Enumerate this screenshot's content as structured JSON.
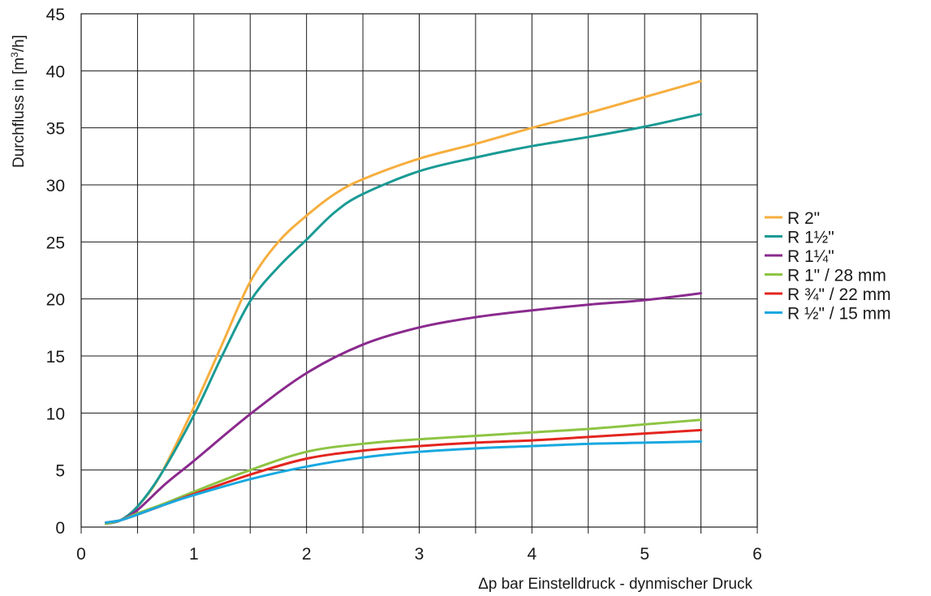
{
  "chart_data": {
    "type": "line",
    "xlabel": "Δp bar Einstelldruck -  dynmischer Druck",
    "ylabel_main": "Durchfluss in [m",
    "ylabel_sup": "3",
    "ylabel_end": "/h]",
    "xlim": [
      0,
      6
    ],
    "ylim": [
      0,
      45
    ],
    "xticks": [
      "0",
      "1",
      "2",
      "3",
      "4",
      "5",
      "6"
    ],
    "yticks": [
      "0",
      "5",
      "10",
      "15",
      "20",
      "25",
      "30",
      "35",
      "40",
      "45"
    ],
    "grid": true,
    "legend_position": "right",
    "series": [
      {
        "name": "R 2\"",
        "color": "#f6ae3e",
        "x": [
          0.22,
          0.35,
          0.5,
          0.7,
          1.0,
          1.25,
          1.5,
          1.75,
          2.0,
          2.25,
          2.5,
          3.0,
          3.5,
          4.0,
          4.5,
          5.0,
          5.5
        ],
        "y": [
          0.3,
          0.6,
          1.8,
          4.5,
          10.5,
          16.0,
          21.5,
          25.0,
          27.3,
          29.2,
          30.5,
          32.3,
          33.6,
          35.0,
          36.3,
          37.7,
          39.1
        ]
      },
      {
        "name": "R 1½\"",
        "color": "#1a9a94",
        "x": [
          0.22,
          0.35,
          0.5,
          0.7,
          1.0,
          1.25,
          1.5,
          1.75,
          2.0,
          2.25,
          2.5,
          3.0,
          3.5,
          4.0,
          4.5,
          5.0,
          5.5
        ],
        "y": [
          0.3,
          0.6,
          1.8,
          4.5,
          9.8,
          15.0,
          19.8,
          22.8,
          25.2,
          27.6,
          29.2,
          31.2,
          32.4,
          33.4,
          34.2,
          35.1,
          36.2
        ]
      },
      {
        "name": "R 1¼\"",
        "color": "#8a2a8e",
        "x": [
          0.22,
          0.35,
          0.5,
          0.75,
          1.0,
          1.5,
          2.0,
          2.5,
          3.0,
          3.5,
          4.0,
          4.5,
          5.0,
          5.5
        ],
        "y": [
          0.3,
          0.6,
          1.5,
          3.8,
          5.8,
          9.9,
          13.5,
          16.0,
          17.5,
          18.4,
          19.0,
          19.5,
          19.9,
          20.5
        ]
      },
      {
        "name": "R 1\" / 28 mm",
        "color": "#8dc443",
        "x": [
          0.22,
          0.35,
          0.5,
          0.75,
          1.0,
          1.5,
          2.0,
          2.5,
          3.0,
          3.5,
          4.0,
          4.5,
          5.0,
          5.5
        ],
        "y": [
          0.3,
          0.6,
          1.2,
          2.1,
          3.1,
          5.0,
          6.6,
          7.3,
          7.7,
          8.0,
          8.3,
          8.6,
          9.0,
          9.4
        ]
      },
      {
        "name": "R ¾\" / 22 mm",
        "color": "#e3251f",
        "x": [
          0.22,
          0.35,
          0.5,
          0.75,
          1.0,
          1.5,
          2.0,
          2.5,
          3.0,
          3.5,
          4.0,
          4.5,
          5.0,
          5.5
        ],
        "y": [
          0.4,
          0.6,
          1.1,
          2.0,
          2.9,
          4.6,
          6.0,
          6.7,
          7.1,
          7.4,
          7.6,
          7.9,
          8.2,
          8.5
        ]
      },
      {
        "name": "R ½\" / 15 mm",
        "color": "#17a8e0",
        "x": [
          0.22,
          0.35,
          0.5,
          0.75,
          1.0,
          1.5,
          2.0,
          2.5,
          3.0,
          3.5,
          4.0,
          4.5,
          5.0,
          5.5
        ],
        "y": [
          0.4,
          0.6,
          1.1,
          2.0,
          2.8,
          4.2,
          5.3,
          6.1,
          6.6,
          6.9,
          7.1,
          7.3,
          7.4,
          7.5
        ]
      }
    ]
  }
}
